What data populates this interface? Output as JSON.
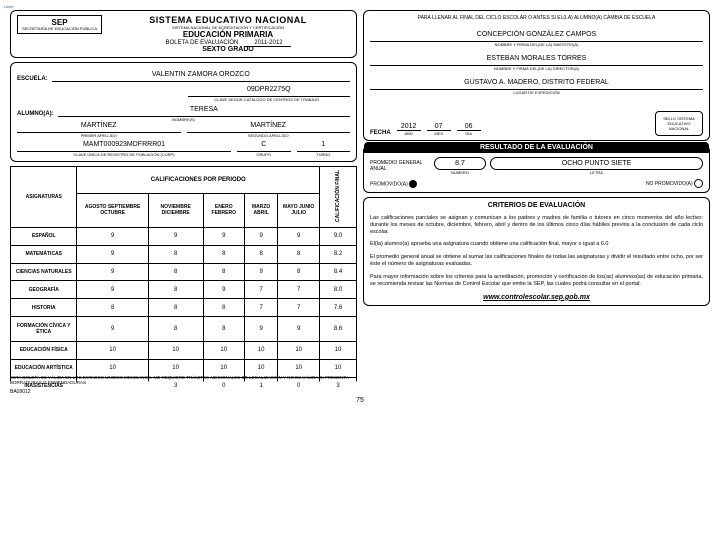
{
  "meta": {
    "tab_hint": "Unde",
    "page_number": "75",
    "form_code": "BA09012",
    "portal_url": "www.controlescolar.sep.gob.mx"
  },
  "header": {
    "sep": "SEP",
    "sep_sub": "SECRETARÍA DE EDUCACIÓN PÚBLICA",
    "sys_title": "SISTEMA EDUCATIVO NACIONAL",
    "sys_sub": "SISTEMA NACIONAL DE ACREDITACIÓN Y CERTIFICACIÓN",
    "level": "EDUCACIÓN PRIMARIA",
    "doc": "BOLETA DE EVALUACIÓN",
    "year": "2011-2012",
    "grade": "SEXTO GRADO"
  },
  "school": {
    "label": "ESCUELA:",
    "name": "VALENTIN ZAMORA  OROZCO",
    "clave": "09DPR2275Q",
    "clave_sub": "CLAVE SEGÚN CATÁLOGO DE CENTROS DE TRABAJO"
  },
  "student": {
    "label": "ALUMNO(A):",
    "nombres": "TERESA",
    "nombres_sub": "NOMBRE(S)",
    "ap1": "MARTÍNEZ",
    "ap1_sub": "PRIMER APELLIDO",
    "ap2": "MARTÍNEZ",
    "ap2_sub": "SEGUNDO APELLIDO",
    "curp": "MAMT000923MDFRRR01",
    "curp_sub": "CLAVE ÚNICA DE REGISTRO DE POBLACIÓN (CURP)",
    "grupo": "C",
    "grupo_sub": "GRUPO",
    "turno": "1",
    "turno_sub": "TURNO"
  },
  "grades": {
    "title": "CALIFICACIONES POR PERIODO",
    "col_asig": "ASIGNATURAS",
    "col_final": "CALIFICACIÓN FINAL",
    "periods": [
      "AGOSTO SEPTIEMBRE OCTUBRE",
      "NOVIEMBRE DICIEMBRE",
      "ENERO FEBRERO",
      "MARZO ABRIL",
      "MAYO JUNIO JULIO"
    ],
    "subjects": [
      {
        "name": "ESPAÑOL",
        "p": [
          "9",
          "9",
          "9",
          "9",
          "9"
        ],
        "final": "9.0"
      },
      {
        "name": "MATEMÁTICAS",
        "p": [
          "9",
          "8",
          "8",
          "8",
          "8"
        ],
        "final": "8.2"
      },
      {
        "name": "CIENCIAS NATURALES",
        "p": [
          "9",
          "8",
          "8",
          "9",
          "8"
        ],
        "final": "8.4"
      },
      {
        "name": "GEOGRAFÍA",
        "p": [
          "9",
          "8",
          "9",
          "7",
          "7"
        ],
        "final": "8.0"
      },
      {
        "name": "HISTORIA",
        "p": [
          "8",
          "8",
          "8",
          "7",
          "7"
        ],
        "final": "7.6"
      },
      {
        "name": "FORMACIÓN CÍVICA Y ÉTICA",
        "p": [
          "9",
          "8",
          "8",
          "9",
          "9"
        ],
        "final": "8.6"
      },
      {
        "name": "EDUCACIÓN FÍSICA",
        "p": [
          "10",
          "10",
          "10",
          "10",
          "10"
        ],
        "final": "10"
      },
      {
        "name": "EDUCACIÓN ARTÍSTICA",
        "p": [
          "10",
          "10",
          "10",
          "10",
          "10"
        ],
        "final": "10"
      }
    ],
    "inasist_label": "INASISTENCIAS",
    "inasist": [
      "",
      "3",
      "0",
      "1",
      "0",
      "3"
    ]
  },
  "footer_note": "ESTA BOLETA ES VÁLIDA EN LOS ESTADOS UNIDOS MEXICANOS. NO REQUIERE TRÁMITES ADICIONALES DE LEGALIZACIÓN Y NO ES VÁLIDA SI PRESENTA BORRADURAS O ENMENDADURAS",
  "right_top": {
    "instr": "PARA LLENAR AL FINAL DEL CICLO ESCOLAR O ANTES SI EL(LA) ALUMNO(A) CAMBIA DE ESCUELA",
    "maestro": "CONCEPCIÓN GONZÁLEZ CAMPOS",
    "maestro_sub": "NOMBRE Y FIRMA DEL(DE LA) MAESTRO(A)",
    "director": "ESTEBAN MORALES TORRES",
    "director_sub": "NOMBRE Y FIRMA DEL(DE LA) DIRECTOR(A)",
    "lugar": "GUSTAVO A. MADERO, DISTRITO FEDERAL",
    "lugar_sub": "LUGAR DE EXPEDICIÓN",
    "fecha_label": "FECHA",
    "anio": "2012",
    "mes": "07",
    "dia": "06",
    "anio_sub": "AÑO",
    "mes_sub": "MES",
    "dia_sub": "DÍA",
    "seal": "SELLO SISTEMA EDUCATIVO NACIONAL"
  },
  "result": {
    "banner": "RESULTADO DE LA EVALUACIÓN",
    "prom_label": "PROMEDIO GENERAL ANUAL",
    "prom_num": "8.7",
    "prom_num_sub": "NÚMERO",
    "prom_text": "OCHO PUNTO SIETE",
    "prom_text_sub": "LETRA",
    "promovido": "PROMOVIDO(A)",
    "no_promovido": "NO PROMOVIDO(A)"
  },
  "criteria": {
    "title": "CRITERIOS DE EVALUACIÓN",
    "p1": "Las calificaciones parciales se asignan y comunican a los padres y madres de familia o tutores en cinco momentos del año lectivo: durante los meses de octubre, diciembre, febrero, abril y dentro de los últimos cinco días hábiles previos a la conclusión de cada ciclo escolar.",
    "p2": "El(la) alumno(a) aprueba una asignatura cuando obtiene una calificación final, mayor o igual a 6.0",
    "p3": "El promedio general anual se obtiene al sumar las calificaciones finales de todas las asignaturas y dividir el resultado entre ocho, por ser éste el número de asignaturas evaluadas.",
    "p4": "Para mayor información sobre los criterios para la acreditación, promoción y certificación de los(as) alumnos(as) de educación primaria, se recomienda revisar las Normas de Control Escolar que emite la SEP, las cuales podrá consultar en el portal:"
  }
}
